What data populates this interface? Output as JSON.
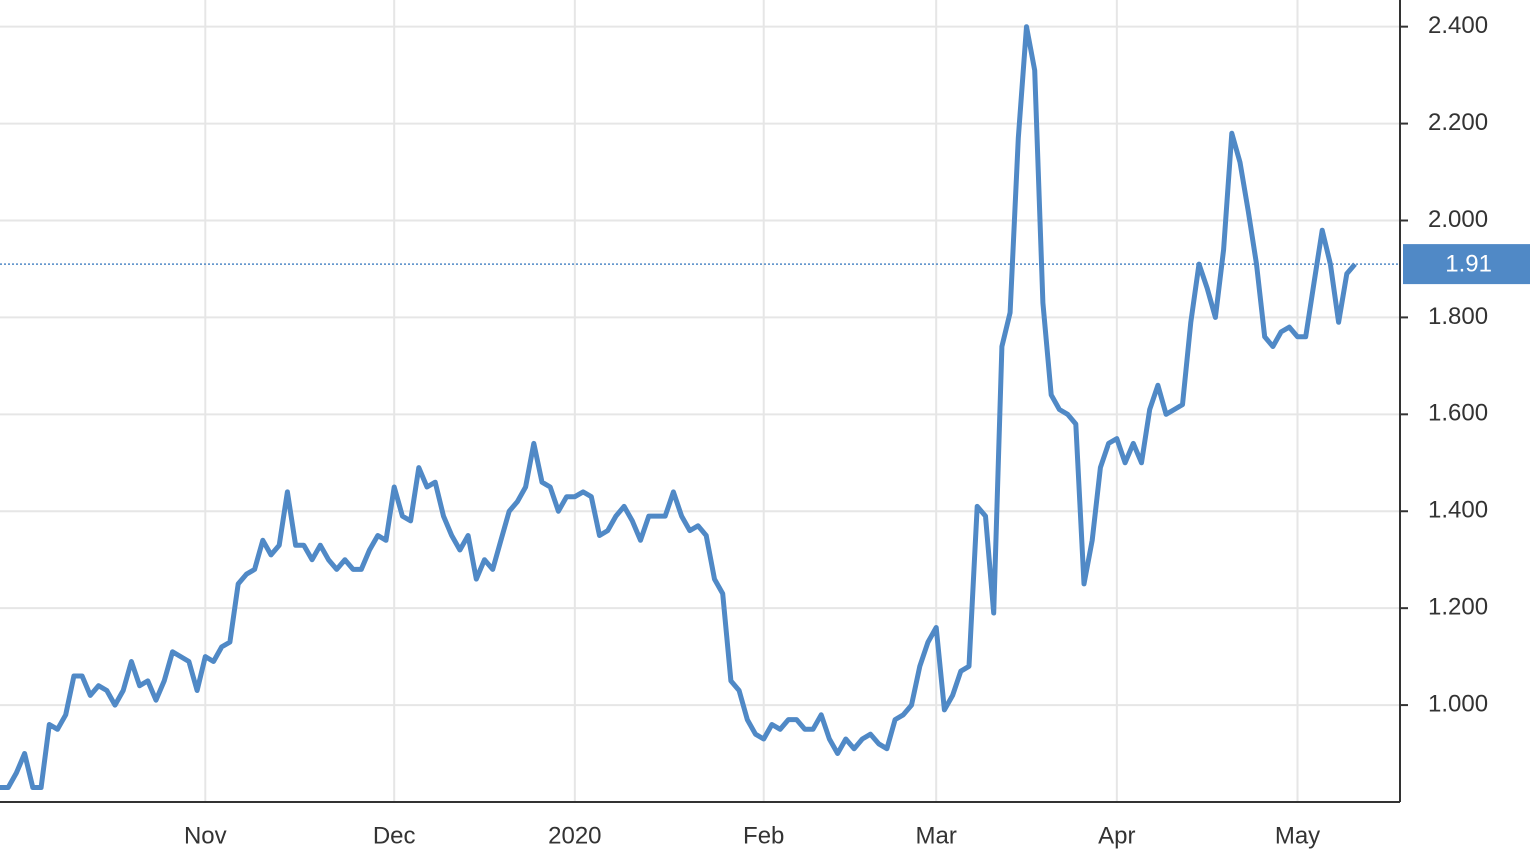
{
  "chart_data": {
    "type": "line",
    "color": "#5089c6",
    "grid": true,
    "ylim": [
      0.8,
      2.455
    ],
    "yticks": [
      {
        "value": 1,
        "label": "1.000"
      },
      {
        "value": 1.2,
        "label": "1.200"
      },
      {
        "value": 1.4,
        "label": "1.400"
      },
      {
        "value": 1.6,
        "label": "1.600"
      },
      {
        "value": 1.8,
        "label": "1.800"
      },
      {
        "value": 2,
        "label": "2.000"
      },
      {
        "value": 2.2,
        "label": "2.200"
      },
      {
        "value": 2.4,
        "label": "2.400"
      }
    ],
    "last_value": 1.91,
    "categories": [
      null,
      null,
      null,
      null,
      null,
      null,
      null,
      null,
      null,
      null,
      null,
      null,
      null,
      null,
      null,
      null,
      null,
      null,
      null,
      null,
      null,
      null,
      null,
      null,
      null,
      "Nov",
      null,
      null,
      null,
      null,
      null,
      null,
      null,
      null,
      null,
      null,
      null,
      null,
      null,
      null,
      null,
      null,
      null,
      null,
      null,
      null,
      null,
      null,
      "Dec",
      null,
      null,
      null,
      null,
      null,
      null,
      null,
      null,
      null,
      null,
      null,
      null,
      null,
      null,
      null,
      null,
      null,
      null,
      null,
      null,
      null,
      "2020",
      null,
      null,
      null,
      null,
      null,
      null,
      null,
      null,
      null,
      null,
      null,
      null,
      null,
      null,
      null,
      null,
      null,
      null,
      null,
      null,
      null,
      null,
      "Feb",
      null,
      null,
      null,
      null,
      null,
      null,
      null,
      null,
      null,
      null,
      null,
      null,
      null,
      null,
      null,
      null,
      null,
      null,
      null,
      null,
      "Mar",
      null,
      null,
      null,
      null,
      null,
      null,
      null,
      null,
      null,
      null,
      null,
      null,
      null,
      null,
      null,
      null,
      null,
      null,
      null,
      null,
      null,
      "Apr",
      null,
      null,
      null,
      null,
      null,
      null,
      null,
      null,
      null,
      null,
      null,
      null,
      null,
      null,
      null,
      null,
      null,
      null,
      null,
      null,
      null,
      "May",
      null,
      null,
      null,
      null,
      null,
      null,
      null
    ],
    "values": [
      0.83,
      0.83,
      0.86,
      0.9,
      0.83,
      0.83,
      0.96,
      0.95,
      0.98,
      1.06,
      1.06,
      1.02,
      1.04,
      1.03,
      1.0,
      1.03,
      1.09,
      1.04,
      1.05,
      1.01,
      1.05,
      1.11,
      1.1,
      1.09,
      1.03,
      1.1,
      1.09,
      1.12,
      1.13,
      1.25,
      1.27,
      1.28,
      1.34,
      1.31,
      1.33,
      1.44,
      1.33,
      1.33,
      1.3,
      1.33,
      1.3,
      1.28,
      1.3,
      1.28,
      1.28,
      1.32,
      1.35,
      1.34,
      1.45,
      1.39,
      1.38,
      1.49,
      1.45,
      1.46,
      1.39,
      1.35,
      1.32,
      1.35,
      1.26,
      1.3,
      1.28,
      1.34,
      1.4,
      1.42,
      1.45,
      1.54,
      1.46,
      1.45,
      1.4,
      1.43,
      1.43,
      1.44,
      1.43,
      1.35,
      1.36,
      1.39,
      1.41,
      1.38,
      1.34,
      1.39,
      1.39,
      1.39,
      1.44,
      1.39,
      1.36,
      1.37,
      1.35,
      1.26,
      1.23,
      1.05,
      1.03,
      0.97,
      0.94,
      0.93,
      0.96,
      0.95,
      0.97,
      0.97,
      0.95,
      0.95,
      0.98,
      0.93,
      0.9,
      0.93,
      0.91,
      0.93,
      0.94,
      0.92,
      0.91,
      0.97,
      0.98,
      1.0,
      1.08,
      1.13,
      1.16,
      0.99,
      1.02,
      1.07,
      1.08,
      1.41,
      1.39,
      1.19,
      1.74,
      1.81,
      2.17,
      2.4,
      2.31,
      1.83,
      1.64,
      1.61,
      1.6,
      1.58,
      1.25,
      1.34,
      1.49,
      1.54,
      1.55,
      1.5,
      1.54,
      1.5,
      1.61,
      1.66,
      1.6,
      1.61,
      1.62,
      1.79,
      1.91,
      1.86,
      1.8,
      1.94,
      2.18,
      2.12,
      2.02,
      1.91,
      1.76,
      1.74,
      1.77,
      1.78,
      1.76,
      1.76,
      1.87,
      1.98,
      1.91,
      1.79,
      1.89,
      1.91
    ]
  }
}
